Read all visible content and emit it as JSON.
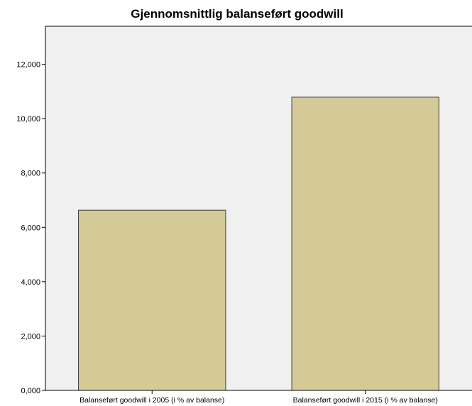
{
  "chart_data": {
    "type": "bar",
    "title": "Gjennomsnittlig balanseført goodwill",
    "xlabel": "",
    "ylabel": "",
    "categories": [
      "Balanseført goodwill i 2005 (i % av balanse)",
      "Balanseført goodwill i 2015 (i % av balanse)"
    ],
    "values": [
      6.63,
      10.79
    ],
    "ylim": [
      0,
      13.4
    ],
    "yticks": [
      0,
      2,
      4,
      6,
      8,
      10,
      12
    ],
    "ytick_labels": [
      "0,000",
      "2,000",
      "4,000",
      "6,000",
      "8,000",
      "10,000",
      "12,000"
    ],
    "grid": false,
    "legend": "none",
    "colors": {
      "plot_background": "#f0f0f0",
      "bar_fill": "#d3ca98",
      "bar_stroke": "#3a3a3a",
      "axis": "#000000"
    }
  }
}
